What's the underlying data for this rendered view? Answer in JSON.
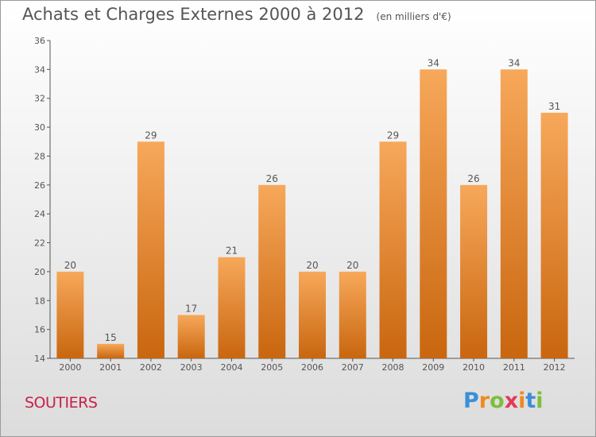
{
  "title": "Achats et Charges Externes 2000 à 2012",
  "subtitle": "(en milliers d'€)",
  "commune": "SOUTIERS",
  "logo": {
    "letters": [
      "P",
      "r",
      "o",
      "x",
      "i",
      "t",
      "i"
    ],
    "colors": [
      "#3b8fd6",
      "#f08a1c",
      "#7bbf3a",
      "#e23a5b",
      "#f08a1c",
      "#3b8fd6",
      "#7bbf3a"
    ]
  },
  "colors": {
    "bar": "#f0892d",
    "bar_light": "#f7a85a",
    "bar_dark": "#c9660f",
    "axis": "#555555",
    "text": "#555555"
  },
  "chart_data": {
    "type": "bar",
    "categories": [
      "2000",
      "2001",
      "2002",
      "2003",
      "2004",
      "2005",
      "2006",
      "2007",
      "2008",
      "2009",
      "2010",
      "2011",
      "2012"
    ],
    "values": [
      20,
      15,
      29,
      17,
      21,
      26,
      20,
      20,
      29,
      34,
      26,
      34,
      31
    ],
    "ylim": [
      14,
      36
    ],
    "yticks": [
      14,
      16,
      18,
      20,
      22,
      24,
      26,
      28,
      30,
      32,
      34,
      36
    ],
    "grid": false
  }
}
